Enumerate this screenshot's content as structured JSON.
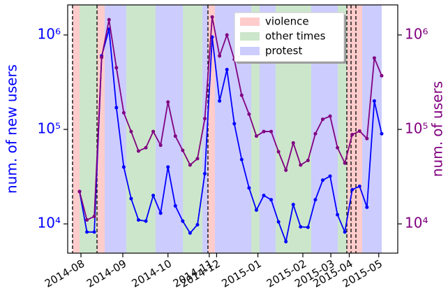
{
  "chart_data": {
    "type": "line",
    "x": [
      0,
      1,
      2,
      3,
      4,
      5,
      6,
      7,
      8,
      9,
      10,
      11,
      12,
      13,
      14,
      15,
      16,
      17,
      18,
      19,
      20,
      21,
      22,
      23,
      24,
      25,
      26,
      27,
      28,
      29,
      30,
      31,
      32,
      33,
      34,
      35,
      36,
      37,
      38,
      39,
      40,
      41
    ],
    "xlim": [
      -1.61,
      43.18
    ],
    "xticks": [
      {
        "value": 0.19,
        "label": "2014-08"
      },
      {
        "value": 5.87,
        "label": "2014-09"
      },
      {
        "value": 12.0,
        "label": "2014-10"
      },
      {
        "value": 17.6,
        "label": "2014-11"
      },
      {
        "value": 18.6,
        "label": "2014-12"
      },
      {
        "value": 24.2,
        "label": "2015-01"
      },
      {
        "value": 30.3,
        "label": "2015-02"
      },
      {
        "value": 34.1,
        "label": "2015-03"
      },
      {
        "value": 36.6,
        "label": "2015-04"
      },
      {
        "value": 40.6,
        "label": "2015-05"
      }
    ],
    "ylabel": "num. of new users",
    "y2label": "num. of users",
    "log_scale": true,
    "ylim": [
      4900,
      2080000
    ],
    "yticks": [
      {
        "value": 10000,
        "label": "10⁴"
      },
      {
        "value": 100000,
        "label": "10⁵"
      },
      {
        "value": 1000000,
        "label": "10⁶"
      }
    ],
    "y2lim": [
      4900,
      2080000
    ],
    "y2ticks": [
      {
        "value": 10000,
        "label": "10⁴"
      },
      {
        "value": 100000,
        "label": "10⁵"
      },
      {
        "value": 1000000,
        "label": "10⁶"
      }
    ],
    "ylabel_color": "#0000ff",
    "y2label_color": "#800080",
    "series": [
      {
        "color": "#0000ff",
        "values": [
          22000,
          8200,
          8200,
          600000,
          1150000,
          170000,
          40000,
          18500,
          11000,
          10700,
          20000,
          13000,
          40000,
          15500,
          10700,
          8000,
          9800,
          34000,
          950000,
          200000,
          430000,
          115000,
          48000,
          24000,
          14000,
          20000,
          18000,
          10500,
          6500,
          16000,
          9300,
          9200,
          18000,
          29000,
          32000,
          12500,
          8200,
          23000,
          25000,
          15000,
          200000,
          90000
        ]
      },
      {
        "color": "#800080",
        "axis": "y2",
        "values": [
          22000,
          11000,
          12000,
          580000,
          1450000,
          450000,
          150000,
          95000,
          59000,
          64000,
          95000,
          68000,
          195000,
          85000,
          60000,
          42000,
          49000,
          130000,
          1550000,
          600000,
          1000000,
          550000,
          230000,
          145000,
          85000,
          95000,
          95000,
          58000,
          37000,
          72000,
          42000,
          47000,
          90000,
          128000,
          138000,
          64000,
          44000,
          88000,
          96000,
          80000,
          570000,
          370000
        ]
      }
    ],
    "spans": [
      {
        "name": "violence",
        "color": "rgba(255,0,0,0.2)",
        "ranges": [
          [
            -0.95,
            0
          ],
          [
            2.37,
            3.41
          ],
          [
            17.42,
            18.37
          ],
          [
            36.27,
            38.35
          ]
        ]
      },
      {
        "name": "other times",
        "color": "rgba(0,128,0,0.2)",
        "ranges": [
          [
            0,
            2.37
          ],
          [
            6.34,
            10.32
          ],
          [
            14.02,
            16.67
          ],
          [
            23.3,
            24.43
          ],
          [
            26.6,
            31.44
          ],
          [
            35.04,
            36.27
          ]
        ]
      },
      {
        "name": "protest",
        "color": "rgba(0,0,255,0.2)",
        "ranges": [
          [
            3.41,
            6.34
          ],
          [
            10.32,
            14.02
          ],
          [
            16.67,
            17.42
          ],
          [
            18.37,
            23.3
          ],
          [
            24.43,
            26.6
          ],
          [
            31.44,
            35.04
          ],
          [
            38.35,
            41
          ]
        ]
      }
    ],
    "vlines": [
      -0.95,
      2.37,
      17.42,
      36.27,
      36.84,
      37.5
    ],
    "legend": "upper right"
  }
}
